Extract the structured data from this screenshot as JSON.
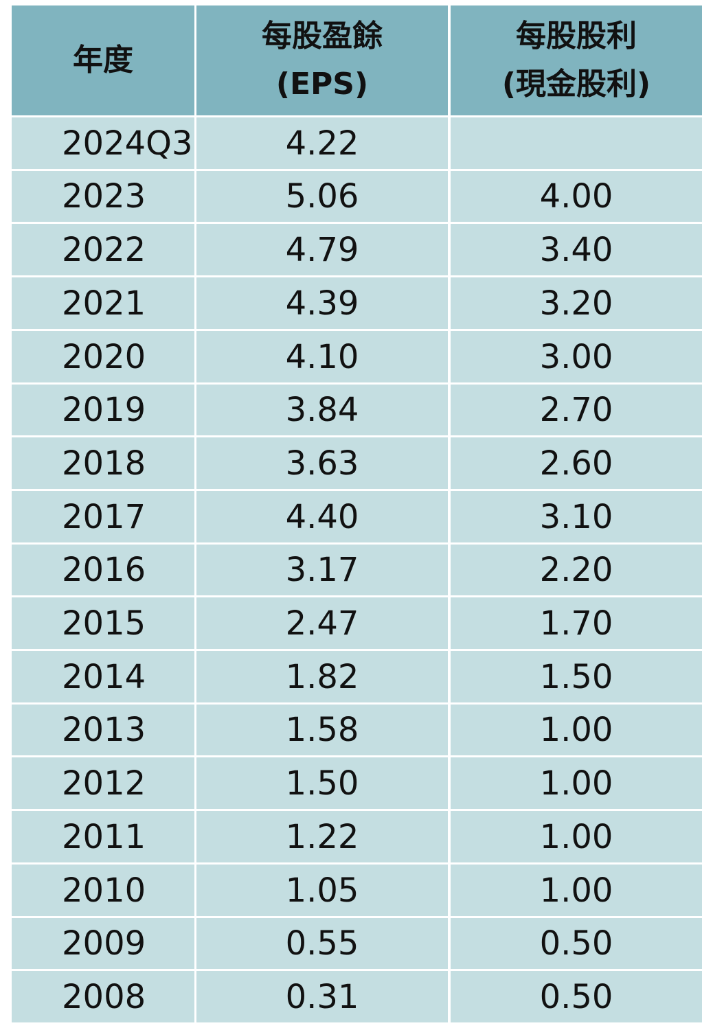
{
  "table": {
    "headers": [
      [
        "年度"
      ],
      [
        "每股盈餘",
        "(EPS)"
      ],
      [
        "每股股利",
        "(現金股利)"
      ]
    ],
    "rows": [
      [
        "2024Q3",
        "4.22",
        null
      ],
      [
        "2023",
        "5.06",
        "4.00"
      ],
      [
        "2022",
        "4.79",
        "3.40"
      ],
      [
        "2021",
        "4.39",
        "3.20"
      ],
      [
        "2020",
        "4.10",
        "3.00"
      ],
      [
        "2019",
        "3.84",
        "2.70"
      ],
      [
        "2018",
        "3.63",
        "2.60"
      ],
      [
        "2017",
        "4.40",
        "3.10"
      ],
      [
        "2016",
        "3.17",
        "2.20"
      ],
      [
        "2015",
        "2.47",
        "1.70"
      ],
      [
        "2014",
        "1.82",
        "1.50"
      ],
      [
        "2013",
        "1.58",
        "1.00"
      ],
      [
        "2012",
        "1.50",
        "1.00"
      ],
      [
        "2011",
        "1.22",
        "1.00"
      ],
      [
        "2010",
        "1.05",
        "1.00"
      ],
      [
        "2009",
        "0.55",
        "0.50"
      ],
      [
        "2008",
        "0.31",
        "0.50"
      ]
    ]
  }
}
